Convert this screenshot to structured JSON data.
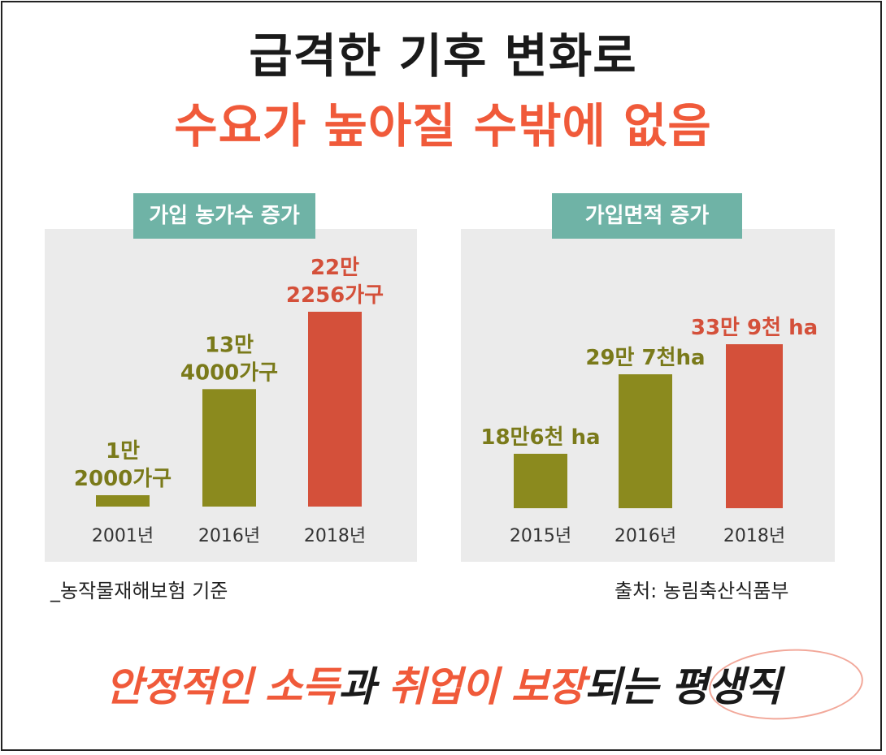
{
  "title_line1": "급격한 기후 변화로",
  "title_line2": "수요가 높아질 수밖에 없음",
  "chart_data": [
    {
      "type": "bar",
      "title": "가입 농가수 증가",
      "categories": [
        "2001년",
        "2016년",
        "2018년"
      ],
      "values": [
        12000,
        134000,
        222256
      ],
      "value_labels": [
        [
          "1만",
          "2000가구"
        ],
        [
          "13만",
          "4000가구"
        ],
        [
          "22만",
          "2256가구"
        ]
      ],
      "colors": [
        "#8b8a1e",
        "#8b8a1e",
        "#d4503a"
      ],
      "label_colors": [
        "#7a7a1a",
        "#7a7a1a",
        "#d4503a"
      ]
    },
    {
      "type": "bar",
      "title": "가입면적 증가",
      "categories": [
        "2015년",
        "2016년",
        "2018년"
      ],
      "values": [
        186000,
        297000,
        339000
      ],
      "value_labels": [
        [
          "18만6천 ha"
        ],
        [
          "29만 7천ha"
        ],
        [
          "33만 9천 ha"
        ]
      ],
      "colors": [
        "#8b8a1e",
        "#8b8a1e",
        "#d4503a"
      ],
      "label_colors": [
        "#7a7a1a",
        "#7a7a1a",
        "#d4503a"
      ]
    }
  ],
  "note_left": "_농작물재해보험 기준",
  "note_right": "출처: 농림축산식품부",
  "bottom": {
    "p1": "안정적인 소득",
    "p2": "과 ",
    "p3": "취업이 보장",
    "p4": "되는 ",
    "p5": "평생직"
  }
}
